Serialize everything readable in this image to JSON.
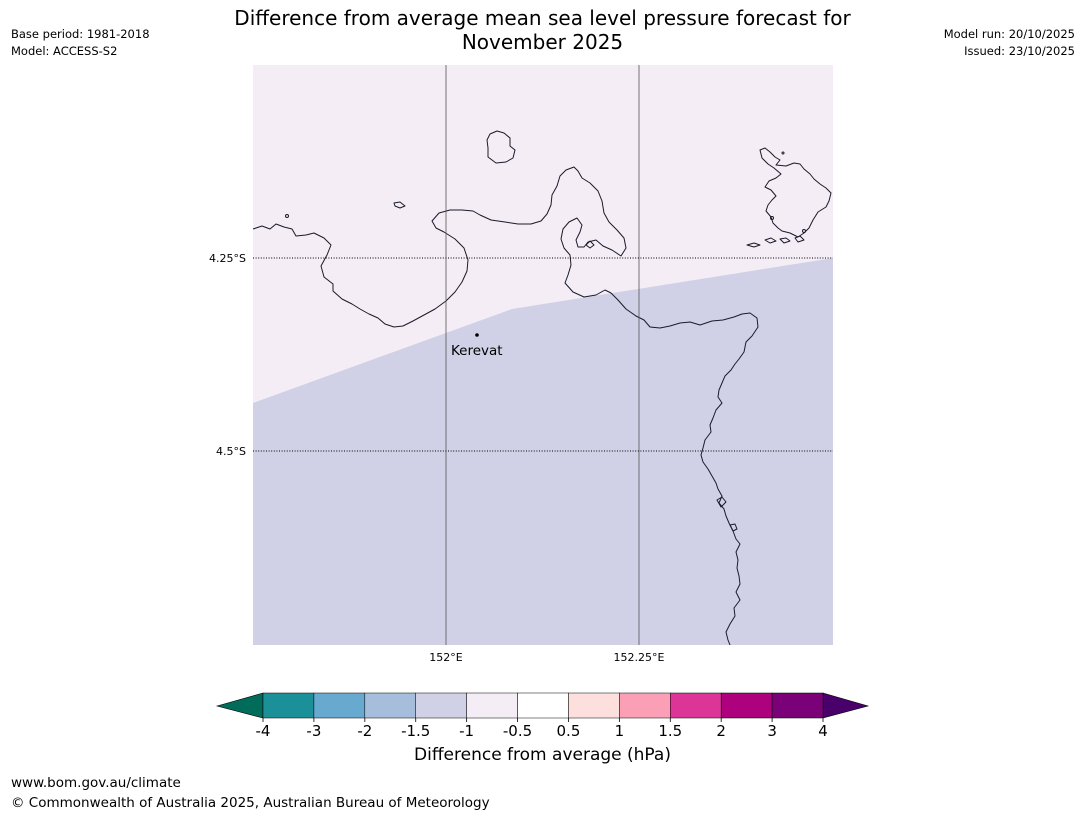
{
  "title": {
    "line1": "Difference from average mean sea level pressure forecast for",
    "line2": "November 2025"
  },
  "meta": {
    "base_period": "Base period: 1981-2018",
    "model": "Model: ACCESS-S2",
    "model_run": "Model run: 20/10/2025",
    "issued": "Issued: 23/10/2025"
  },
  "map": {
    "lat_labels": [
      "4.25°S",
      "4.5°S"
    ],
    "lon_labels": [
      "152°E",
      "152.25°E"
    ],
    "place": {
      "name": "Kerevat"
    },
    "region_colors": {
      "upper": "#f4edf5",
      "lower": "#d0d1e6"
    },
    "upper_region_bin": "-1 to -0.5",
    "lower_region_bin": "-1.5 to -1"
  },
  "colorbar": {
    "label": "Difference from average (hPa)",
    "ticks": [
      "-4",
      "-3",
      "-2",
      "-1.5",
      "-1",
      "-0.5",
      "0.5",
      "1",
      "1.5",
      "2",
      "3",
      "4"
    ],
    "under_color": "#016c59",
    "over_color": "#49006a",
    "colors": [
      "#1c9099",
      "#67a9cf",
      "#a6bddb",
      "#d0d1e6",
      "#f4edf5",
      "#ffffff",
      "#fde0dd",
      "#fa9fb5",
      "#dd3497",
      "#ae017e",
      "#7a0177"
    ]
  },
  "footer": {
    "url": "www.bom.gov.au/climate",
    "copyright": "© Commonwealth of Australia 2025, Australian Bureau of Meteorology"
  }
}
